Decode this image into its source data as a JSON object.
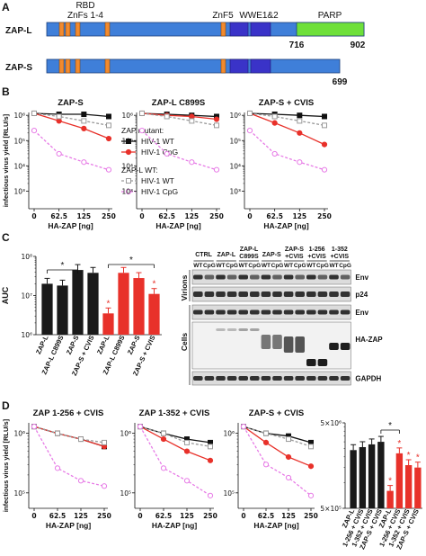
{
  "figure": {
    "panel_labels": [
      "A",
      "B",
      "C",
      "D"
    ]
  },
  "domains": {
    "proteins": [
      "ZAP-L",
      "ZAP-S"
    ],
    "labels": [
      "RBD",
      "ZnFs 1-4",
      "ZnF5",
      "WWE1&2",
      "PARP"
    ],
    "positions": [
      "716",
      "902",
      "699"
    ]
  },
  "blot": {
    "lane_groups": [
      [
        "CTRL"
      ],
      [
        "ZAP-L"
      ],
      [
        "ZAP-L",
        "C899S"
      ],
      [
        "ZAP-S"
      ],
      [
        "ZAP-S",
        "+CVIS"
      ],
      [
        "1-256",
        "+CVIS"
      ],
      [
        "1-352",
        "+CVIS"
      ]
    ],
    "lanes": [
      "WT",
      "CpG"
    ],
    "sections": [
      "Virions",
      "Cells"
    ],
    "bands": [
      "Env",
      "p24",
      "Env",
      "HA-ZAP",
      "GAPDH"
    ]
  },
  "chart_data": [
    {
      "type": "line",
      "title": "ZAP-S",
      "categories": [
        "0",
        "62.5",
        "125",
        "250"
      ],
      "log": true,
      "ylim": [
        200,
        1300000
      ],
      "yticks": [
        {
          "value": 1000,
          "label": "10³"
        },
        {
          "value": 10000,
          "label": "10⁴"
        },
        {
          "value": 100000,
          "label": "10⁵"
        },
        {
          "value": 1000000,
          "label": "10⁶"
        }
      ],
      "xlabel": "HA-ZAP [ng]",
      "ylabel": "infectious virus yield [RLU/s]",
      "legend_titles": [
        "ZAP mutant:",
        "ZAP-L WT:"
      ],
      "series": [
        {
          "name": "HIV-1 WT",
          "color": "#111111",
          "marker": "square",
          "filled": true,
          "dash": false,
          "values": [
            1200000,
            1100000,
            1100000,
            900000
          ]
        },
        {
          "name": "HIV-1 CpG",
          "color": "#e8312a",
          "marker": "circle",
          "filled": true,
          "dash": false,
          "values": [
            1200000,
            600000,
            300000,
            120000
          ]
        },
        {
          "name": "HIV-1 WT",
          "color": "#9a9a9a",
          "marker": "square",
          "filled": false,
          "dash": true,
          "values": [
            1200000,
            900000,
            600000,
            400000
          ]
        },
        {
          "name": "HIV-1 CpG",
          "color": "#e77be6",
          "marker": "circle",
          "filled": false,
          "dash": true,
          "values": [
            250000,
            30000,
            14000,
            7000
          ]
        }
      ]
    },
    {
      "type": "line",
      "title": "ZAP-L C899S",
      "categories": [
        "0",
        "62.5",
        "125",
        "250"
      ],
      "log": true,
      "ylim": [
        200,
        1300000
      ],
      "yticks": [
        {
          "value": 1000,
          "label": "10³"
        },
        {
          "value": 10000,
          "label": "10⁴"
        },
        {
          "value": 100000,
          "label": "10⁵"
        },
        {
          "value": 1000000,
          "label": "10⁶"
        }
      ],
      "xlabel": "HA-ZAP [ng]",
      "series": [
        {
          "color": "#111111",
          "marker": "square",
          "filled": true,
          "dash": false,
          "values": [
            1200000,
            1100000,
            1000000,
            900000
          ]
        },
        {
          "color": "#e8312a",
          "marker": "circle",
          "filled": true,
          "dash": false,
          "values": [
            1200000,
            1000000,
            900000,
            700000
          ]
        },
        {
          "color": "#9a9a9a",
          "marker": "square",
          "filled": false,
          "dash": true,
          "values": [
            1200000,
            900000,
            600000,
            400000
          ]
        },
        {
          "color": "#e77be6",
          "marker": "circle",
          "filled": false,
          "dash": true,
          "values": [
            250000,
            30000,
            14000,
            7000
          ]
        }
      ]
    },
    {
      "type": "line",
      "title": "ZAP-S + CVIS",
      "categories": [
        "0",
        "62.5",
        "125",
        "250"
      ],
      "log": true,
      "ylim": [
        200,
        1300000
      ],
      "yticks": [
        {
          "value": 1000,
          "label": "10³"
        },
        {
          "value": 10000,
          "label": "10⁴"
        },
        {
          "value": 100000,
          "label": "10⁵"
        },
        {
          "value": 1000000,
          "label": "10⁶"
        }
      ],
      "xlabel": "HA-ZAP [ng]",
      "series": [
        {
          "color": "#111111",
          "marker": "square",
          "filled": true,
          "dash": false,
          "values": [
            1200000,
            1100000,
            1000000,
            900000
          ]
        },
        {
          "color": "#e8312a",
          "marker": "circle",
          "filled": true,
          "dash": false,
          "values": [
            1200000,
            500000,
            200000,
            70000
          ]
        },
        {
          "color": "#9a9a9a",
          "marker": "square",
          "filled": false,
          "dash": true,
          "values": [
            1200000,
            900000,
            600000,
            400000
          ]
        },
        {
          "color": "#e77be6",
          "marker": "circle",
          "filled": false,
          "dash": true,
          "values": [
            250000,
            30000,
            14000,
            7000
          ]
        }
      ]
    },
    {
      "type": "bar",
      "categories": [
        "ZAP-L",
        "ZAP-L C899S",
        "ZAP-S",
        "ZAP-S + CVIS",
        "ZAP-L",
        "ZAP-L C899S",
        "ZAP-S",
        "ZAP-S + CVIS"
      ],
      "values": [
        20000000,
        18000000,
        45000000,
        38000000,
        3500000,
        38000000,
        28000000,
        11000000
      ],
      "colors": [
        "#1a1a1a",
        "#1a1a1a",
        "#1a1a1a",
        "#1a1a1a",
        "#e8312a",
        "#e8312a",
        "#e8312a",
        "#e8312a"
      ],
      "log": true,
      "ylim": [
        1000000,
        100000000
      ],
      "yticks": [
        {
          "value": 1000000,
          "label": "10⁶"
        },
        {
          "value": 10000000,
          "label": "10⁷"
        },
        {
          "value": 100000000,
          "label": "10⁸"
        }
      ],
      "ylabel": "AUC",
      "annotations": [
        {
          "text": "*",
          "color": "#111111"
        },
        {
          "text": "*",
          "color": "#111111"
        },
        {
          "text": "*",
          "color": "#e8312a"
        },
        {
          "text": "*",
          "color": "#e8312a"
        }
      ]
    },
    {
      "type": "line",
      "title": "ZAP 1-256 + CVIS",
      "categories": [
        "0",
        "62.5",
        "125",
        "250"
      ],
      "log": true,
      "ylim": [
        55000,
        1500000
      ],
      "yticks": [
        {
          "value": 100000,
          "label": "10⁵"
        },
        {
          "value": 1000000,
          "label": "10⁶"
        }
      ],
      "xlabel": "HA-ZAP [ng]",
      "ylabel": "infectious virus yield [RLU/s]",
      "series": [
        {
          "color": "#111111",
          "marker": "square",
          "filled": true,
          "dash": false,
          "values": [
            1300000,
            1000000,
            800000,
            600000
          ]
        },
        {
          "color": "#e8312a",
          "marker": "circle",
          "filled": true,
          "dash": false,
          "values": [
            1300000,
            1000000,
            800000,
            600000
          ]
        },
        {
          "color": "#9a9a9a",
          "marker": "square",
          "filled": false,
          "dash": true,
          "values": [
            1300000,
            1000000,
            800000,
            700000
          ]
        },
        {
          "color": "#e77be6",
          "marker": "circle",
          "filled": false,
          "dash": true,
          "values": [
            1300000,
            260000,
            160000,
            130000
          ]
        }
      ]
    },
    {
      "type": "line",
      "title": "ZAP 1-352 + CVIS",
      "categories": [
        "0",
        "62.5",
        "125",
        "250"
      ],
      "log": true,
      "ylim": [
        55000,
        1500000
      ],
      "yticks": [
        {
          "value": 100000,
          "label": "10⁵"
        },
        {
          "value": 1000000,
          "label": "10⁶"
        }
      ],
      "xlabel": "HA-ZAP [ng]",
      "series": [
        {
          "color": "#111111",
          "marker": "square",
          "filled": true,
          "dash": false,
          "values": [
            1300000,
            1000000,
            800000,
            700000
          ]
        },
        {
          "color": "#e8312a",
          "marker": "circle",
          "filled": true,
          "dash": false,
          "values": [
            1300000,
            800000,
            500000,
            350000
          ]
        },
        {
          "color": "#9a9a9a",
          "marker": "square",
          "filled": false,
          "dash": true,
          "values": [
            1300000,
            1000000,
            700000,
            600000
          ]
        },
        {
          "color": "#e77be6",
          "marker": "circle",
          "filled": false,
          "dash": true,
          "values": [
            1300000,
            260000,
            160000,
            90000
          ]
        }
      ]
    },
    {
      "type": "line",
      "title": "ZAP-S + CVIS",
      "categories": [
        "0",
        "62.5",
        "125",
        "250"
      ],
      "log": true,
      "ylim": [
        55000,
        1500000
      ],
      "yticks": [
        {
          "value": 100000,
          "label": "10⁵"
        },
        {
          "value": 1000000,
          "label": "10⁶"
        }
      ],
      "xlabel": "HA-ZAP [ng]",
      "series": [
        {
          "color": "#111111",
          "marker": "square",
          "filled": true,
          "dash": false,
          "values": [
            1300000,
            1000000,
            900000,
            700000
          ]
        },
        {
          "color": "#e8312a",
          "marker": "circle",
          "filled": true,
          "dash": false,
          "values": [
            1300000,
            700000,
            400000,
            280000
          ]
        },
        {
          "color": "#9a9a9a",
          "marker": "square",
          "filled": false,
          "dash": true,
          "values": [
            1300000,
            1000000,
            800000,
            600000
          ]
        },
        {
          "color": "#e77be6",
          "marker": "circle",
          "filled": false,
          "dash": true,
          "values": [
            1300000,
            300000,
            180000,
            90000
          ]
        }
      ]
    },
    {
      "type": "bar",
      "categories": [
        "ZAP-L",
        "1-256 + CVIS",
        "1-352 + CVIS",
        "ZAP-S + CVIS",
        "ZAP-L",
        "1-256 + CVIS",
        "1-352 + CVIS",
        "ZAP-S + CVIS"
      ],
      "values": [
        2400000,
        2600000,
        2800000,
        3000000,
        800000,
        2200000,
        1600000,
        1500000
      ],
      "colors": [
        "#1a1a1a",
        "#1a1a1a",
        "#1a1a1a",
        "#1a1a1a",
        "#e8312a",
        "#e8312a",
        "#e8312a",
        "#e8312a"
      ],
      "log": true,
      "ylim": [
        500000,
        5000000
      ],
      "yticks": [
        {
          "value": 500000,
          "label": "5×10⁵"
        },
        {
          "value": 5000000,
          "label": "5×10⁶"
        }
      ],
      "annotations": [
        {
          "text": "*",
          "color": "#111111"
        },
        {
          "text": "*",
          "color": "#e8312a"
        },
        {
          "text": "*",
          "color": "#e8312a"
        },
        {
          "text": "*",
          "color": "#e8312a"
        },
        {
          "text": "*",
          "color": "#e8312a"
        }
      ]
    }
  ]
}
